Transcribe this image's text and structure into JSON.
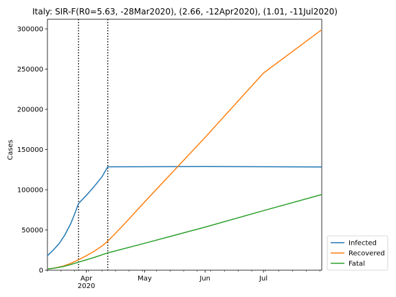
{
  "chart_data": {
    "type": "line",
    "title": "Italy: SIR-F(R0=5.63, -28Mar2020), (2.66, -12Apr2020), (1.01, -11Jul2020)",
    "xlabel": "",
    "ylabel": "Cases",
    "x_range": [
      "2020-03-12",
      "2020-07-31"
    ],
    "ylim": [
      0,
      312000
    ],
    "y_ticks": [
      0,
      50000,
      100000,
      150000,
      200000,
      250000,
      300000
    ],
    "x_ticks": [
      {
        "date": "2020-04-01",
        "label": "Apr",
        "sublabel": "2020"
      },
      {
        "date": "2020-05-01",
        "label": "May",
        "sublabel": ""
      },
      {
        "date": "2020-06-01",
        "label": "Jun",
        "sublabel": ""
      },
      {
        "date": "2020-07-01",
        "label": "Jul",
        "sublabel": ""
      }
    ],
    "change_dates": [
      "2020-03-28",
      "2020-04-12"
    ],
    "legend_position": "outside-lower-right",
    "grid": false,
    "series": [
      {
        "name": "Infected",
        "color": "#1f77b4",
        "points": [
          [
            "2020-03-12",
            18000
          ],
          [
            "2020-03-15",
            25000
          ],
          [
            "2020-03-18",
            33000
          ],
          [
            "2020-03-21",
            44000
          ],
          [
            "2020-03-24",
            58000
          ],
          [
            "2020-03-26",
            70000
          ],
          [
            "2020-03-28",
            83000
          ],
          [
            "2020-04-01",
            93000
          ],
          [
            "2020-04-05",
            104000
          ],
          [
            "2020-04-09",
            116000
          ],
          [
            "2020-04-12",
            128500
          ],
          [
            "2020-05-01",
            128700
          ],
          [
            "2020-06-01",
            128900
          ],
          [
            "2020-07-01",
            128600
          ],
          [
            "2020-07-31",
            128300
          ]
        ]
      },
      {
        "name": "Recovered",
        "color": "#ff7f0e",
        "points": [
          [
            "2020-03-12",
            1500
          ],
          [
            "2020-03-16",
            2800
          ],
          [
            "2020-03-20",
            5000
          ],
          [
            "2020-03-24",
            8500
          ],
          [
            "2020-03-28",
            13000
          ],
          [
            "2020-04-01",
            18000
          ],
          [
            "2020-04-05",
            23500
          ],
          [
            "2020-04-09",
            30000
          ],
          [
            "2020-04-12",
            36000
          ],
          [
            "2020-04-20",
            56000
          ],
          [
            "2020-05-01",
            85000
          ],
          [
            "2020-06-01",
            165000
          ],
          [
            "2020-07-01",
            245000
          ],
          [
            "2020-07-31",
            299000
          ]
        ]
      },
      {
        "name": "Fatal",
        "color": "#2ca02c",
        "points": [
          [
            "2020-03-12",
            1500
          ],
          [
            "2020-03-16",
            2700
          ],
          [
            "2020-03-20",
            4500
          ],
          [
            "2020-03-24",
            7000
          ],
          [
            "2020-03-28",
            10000
          ],
          [
            "2020-04-05",
            15800
          ],
          [
            "2020-04-12",
            21500
          ],
          [
            "2020-05-01",
            33500
          ],
          [
            "2020-06-01",
            53500
          ],
          [
            "2020-07-01",
            74000
          ],
          [
            "2020-07-31",
            94000
          ]
        ]
      }
    ]
  }
}
